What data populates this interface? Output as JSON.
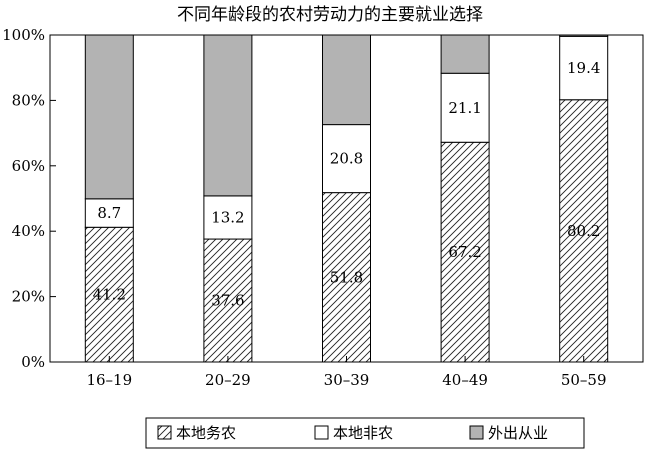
{
  "chart_data": {
    "type": "bar",
    "stacked": true,
    "title": "不同年龄段的农村劳动力的主要就业选择",
    "categories": [
      "16–19",
      "20–29",
      "30–39",
      "40–49",
      "50–59"
    ],
    "ytick_labels": [
      "0%",
      "20%",
      "40%",
      "60%",
      "80%",
      "100%"
    ],
    "ylim": [
      0,
      100
    ],
    "legend_position": "bottom",
    "series": [
      {
        "name": "本地务农",
        "values": [
          41.2,
          37.6,
          51.8,
          67.2,
          80.2
        ],
        "labels": [
          "41.2",
          "37.6",
          "51.8",
          "67.2",
          "80.2"
        ],
        "fill": "hatch"
      },
      {
        "name": "本地非农",
        "values": [
          8.7,
          13.2,
          20.8,
          21.1,
          19.4
        ],
        "labels": [
          "8.7",
          "13.2",
          "20.8",
          "21.1",
          "19.4"
        ],
        "fill": "#ffffff"
      },
      {
        "name": "外出从业",
        "values": [
          50.1,
          49.2,
          27.4,
          11.7,
          0.4
        ],
        "fill": "#b3b3b3"
      }
    ]
  }
}
